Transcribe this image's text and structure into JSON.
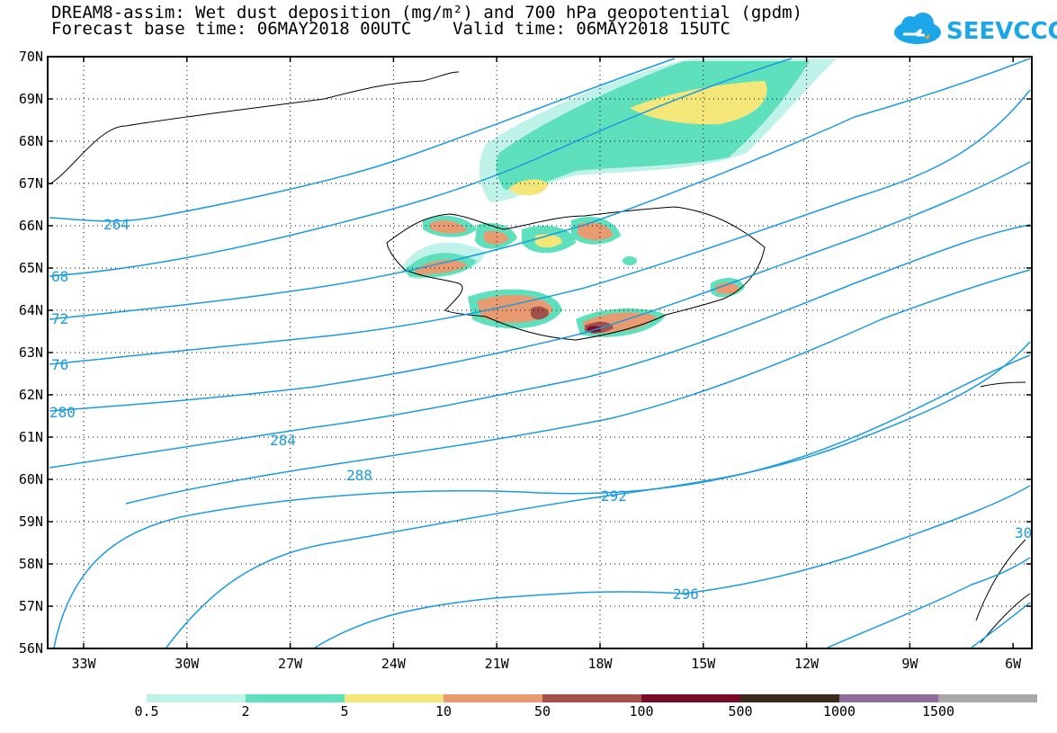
{
  "title": {
    "line1": "DREAM8-assim: Wet dust deposition (mg/m²) and 700 hPa geopotential (gpdm)",
    "line2": "Forecast base time: 06MAY2018 00UTC    Valid time: 06MAY2018 15UTC"
  },
  "logo": {
    "text": "SEEVCCC",
    "icon": "cloud-icon"
  },
  "map": {
    "lat_labels": [
      "70N",
      "69N",
      "68N",
      "67N",
      "66N",
      "65N",
      "64N",
      "63N",
      "62N",
      "61N",
      "60N",
      "59N",
      "58N",
      "57N",
      "56N"
    ],
    "lon_labels": [
      "33W",
      "30W",
      "27W",
      "24W",
      "21W",
      "18W",
      "15W",
      "12W",
      "9W",
      "6W"
    ],
    "contour_labels": [
      "264",
      "68",
      "72",
      "76",
      "280",
      "284",
      "288",
      "292",
      "296",
      "30"
    ],
    "contour_color": "#1a9be0"
  },
  "colorbar": {
    "labels": [
      "0.5",
      "2",
      "5",
      "10",
      "50",
      "100",
      "500",
      "1000",
      "1500"
    ],
    "colors": [
      "#bff2e8",
      "#5ee0bc",
      "#f5e67a",
      "#e89a70",
      "#a3514a",
      "#7a0a2a",
      "#3a2a1a",
      "#8e6c9c",
      "#a8a8a8"
    ]
  }
}
